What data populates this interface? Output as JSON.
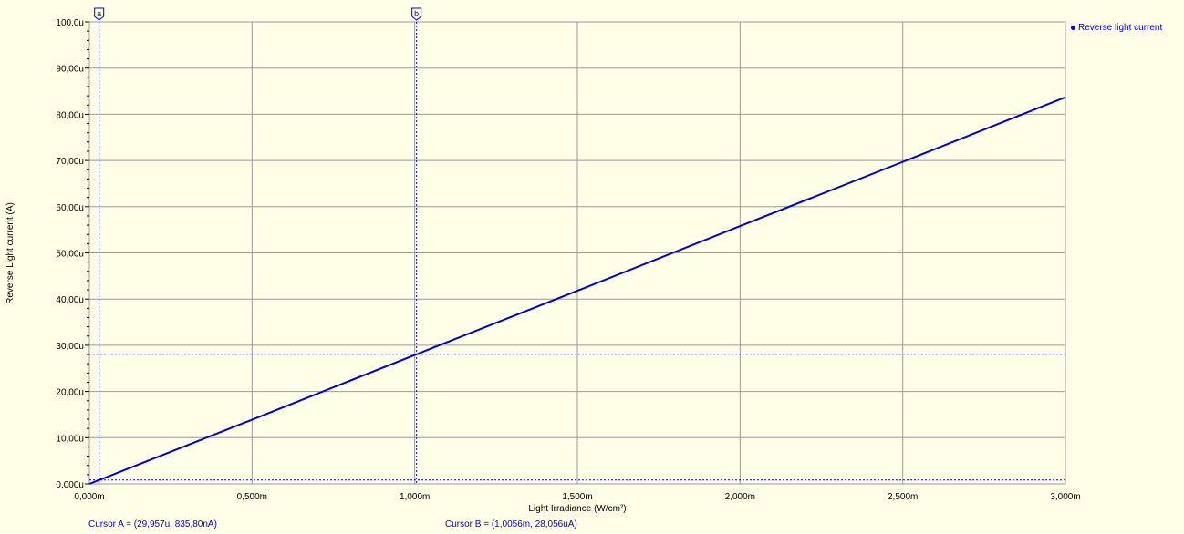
{
  "chart_data": {
    "type": "line",
    "xlabel": "Light Irradiance (W/cm²)",
    "ylabel": "Reverse Light current (A)",
    "xlim": [
      0,
      0.003
    ],
    "ylim": [
      0,
      0.0001
    ],
    "x_tick_labels": [
      "0,000m",
      "0,500m",
      "1,000m",
      "1,500m",
      "2,000m",
      "2,500m",
      "3,000m"
    ],
    "y_tick_labels": [
      "0,000u",
      "10,00u",
      "20,00u",
      "30,00u",
      "40,00u",
      "50,00u",
      "60,00u",
      "70,00u",
      "80,00u",
      "90,00u",
      "100,0u"
    ],
    "grid": true,
    "legend_position": "top-right",
    "series": [
      {
        "name": "Reverse light current",
        "color": "#0000cc",
        "x": [
          0,
          0.0005,
          0.001,
          0.0015,
          0.002,
          0.0025,
          0.003
        ],
        "y": [
          0,
          1.39e-05,
          2.79e-05,
          4.18e-05,
          5.58e-05,
          6.97e-05,
          8.37e-05
        ]
      }
    ],
    "cursors": [
      {
        "tag": "a",
        "x": 2.9957e-05,
        "y": 8.358e-07,
        "readout": "Cursor A = (29,957u, 835,80nA)"
      },
      {
        "tag": "b",
        "x": 0.0010056,
        "y": 2.8056e-05,
        "readout": "Cursor B = (1,0056m, 28,056uA)"
      }
    ]
  },
  "colors": {
    "background": "#ffffe8",
    "grid": "#999999",
    "series": "#0000cc"
  }
}
